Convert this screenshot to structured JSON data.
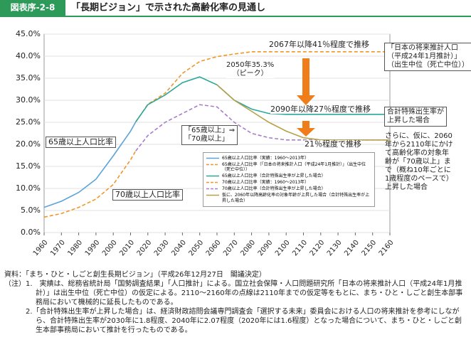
{
  "header": {
    "label": "図表序-2-8",
    "title": "「長期ビジョン」で示された高齢化率の見通し"
  },
  "chart_data": {
    "type": "line",
    "x": [
      1960,
      1970,
      1980,
      1990,
      2000,
      2010,
      2013,
      2020,
      2030,
      2040,
      2050,
      2060,
      2070,
      2080,
      2090,
      2100,
      2110,
      2120,
      2130,
      2140,
      2150,
      2160
    ],
    "xlim": [
      1960,
      2160
    ],
    "xticks": [
      1960,
      1970,
      1980,
      1990,
      2000,
      2010,
      2020,
      2030,
      2040,
      2050,
      2060,
      2070,
      2080,
      2090,
      2100,
      2110,
      2120,
      2130,
      2140,
      2150,
      2160
    ],
    "ylim": [
      0,
      45
    ],
    "yticks": [
      {
        "value": 0,
        "label": "0.0%"
      },
      {
        "value": 5,
        "label": "5.0%"
      },
      {
        "value": 10,
        "label": "10.0%"
      },
      {
        "value": 15,
        "label": "15.0%"
      },
      {
        "value": 20,
        "label": "20.0%"
      },
      {
        "value": 25,
        "label": "25.0%"
      },
      {
        "value": 30,
        "label": "30.0%"
      },
      {
        "value": 35,
        "label": "35.0%"
      },
      {
        "value": 40,
        "label": "40.0%"
      },
      {
        "value": 45,
        "label": "45.0%"
      }
    ],
    "series": [
      {
        "name": "65歳以上人口比率（実績：1960～2013年）",
        "color": "#5ba3d9",
        "style": "solid",
        "values": [
          5.7,
          7.1,
          9.1,
          12.1,
          17.4,
          23.0,
          25.1,
          null,
          null,
          null,
          null,
          null,
          null,
          null,
          null,
          null,
          null,
          null,
          null,
          null,
          null,
          null
        ]
      },
      {
        "name": "65歳以上人口比率（「日本の将来推計人口（平成24年1月推計）」（出生中位（死亡中位））",
        "color": "#f0962a",
        "style": "dashed",
        "values": [
          null,
          null,
          null,
          null,
          null,
          null,
          25.1,
          29.1,
          31.6,
          36.1,
          38.8,
          39.9,
          40.5,
          41.0,
          41.0,
          41.0,
          41.0,
          41.0,
          41.0,
          41.0,
          41.0,
          41.0
        ]
      },
      {
        "name": "65歳以上人口比率（合計特殊出生率が上昇した場合）",
        "color": "#2aa89a",
        "style": "solid",
        "values": [
          null,
          null,
          null,
          null,
          null,
          null,
          25.1,
          29.0,
          31.2,
          34.0,
          35.3,
          33.5,
          30.0,
          28.0,
          27.0,
          26.8,
          26.8,
          26.8,
          26.8,
          26.8,
          26.8,
          26.8
        ]
      },
      {
        "name": "70歳以上人口比率（実績：1960～2013年）",
        "color": "#f0962a",
        "style": "dashed",
        "values": [
          3.5,
          4.3,
          5.7,
          7.6,
          10.9,
          16.5,
          18.5,
          null,
          null,
          null,
          null,
          null,
          null,
          null,
          null,
          null,
          null,
          null,
          null,
          null,
          null,
          null
        ]
      },
      {
        "name": "70歳以上人口比率（合計特殊出生率が上昇した場合）",
        "color": "#a77cc9",
        "style": "dashed",
        "values": [
          null,
          null,
          null,
          null,
          null,
          null,
          18.5,
          22.0,
          25.0,
          27.0,
          29.0,
          28.5,
          25.0,
          22.5,
          21.5,
          21.0,
          21.0,
          21.0,
          21.0,
          21.0,
          21.0,
          21.0
        ]
      },
      {
        "name": "仮に、2060年以降高齢化率の対象年齢が上昇した場合（合計特殊出生率が上昇した場合）",
        "color": "#b8a04a",
        "style": "solid",
        "values": [
          null,
          null,
          null,
          null,
          null,
          null,
          null,
          null,
          null,
          null,
          null,
          33.5,
          30.0,
          27.5,
          25.0,
          23.0,
          21.5,
          21.0,
          21.0,
          21.0,
          21.0,
          21.0
        ]
      }
    ],
    "annotations": {
      "a41": "2067年以降41％程度で推移",
      "peak": [
        "2050年35.3%",
        "（ピーク）"
      ],
      "a27": "2090年以降27％程度で推移",
      "a21": "21％程度で推移",
      "l65": "65歳以上人口比率",
      "l70": "70歳以上人口比率",
      "shift": [
        "「65歳以上」⇒",
        "「70歳以上」"
      ],
      "box1": [
        "「日本の将来推計人口",
        "（平成24年1月推計）」",
        "（出生中位（死亡中位））"
      ],
      "box2": [
        "合計特殊出生率が",
        "上昇した場合"
      ],
      "box3": [
        "さらに、仮に、2060",
        "年から2110年にかけ",
        "て高齢化率の対象年",
        "齢が「70歳以上」ま",
        "で（概ね10年ごとに",
        "1歳程度のペースで）",
        "上昇した場合"
      ]
    }
  },
  "notes": {
    "source": "資料：「まち・ひと・しごと創生長期ビジョン」（平成26年12月27日　閣議決定）",
    "label": "（注）",
    "items": [
      "1.　実績は、総務省統計局「国勢調査結果」「人口推計」による。国立社会保障・人口問題研究所「日本の将来推計人口（平成24年1月推計）」は出生中位（死亡中位）の仮定による。2110～2160年の点線は2110年までの仮定等をもとに、まち・ひと・しごと創生本部事務局において機械的に延長したものである。",
      "2.「合計特殊出生率が上昇した場合」は、経済財政諮問会議専門調査会「選択する未来」委員会における人口の将来推計を参考にしながら、合計特殊出生率が2030年に1.8程度、2040年に2.07程度（2020年には1.6程度）となった場合について、まち・ひと・しごと創生本部事務局において推計を行ったものである。"
    ]
  }
}
